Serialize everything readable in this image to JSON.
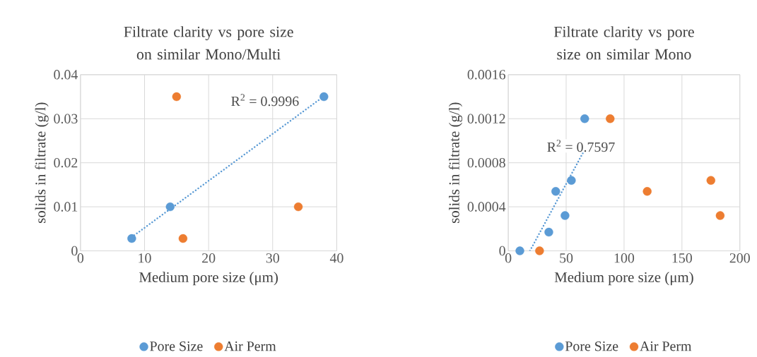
{
  "chart_data": [
    {
      "type": "scatter",
      "title": "Filtrate clarity vs pore size on similar Mono/Multi",
      "xlabel": "Medium pore size (μm)",
      "ylabel": "solids in filtrate (g/l)",
      "xlim": [
        0,
        40
      ],
      "ylim": [
        0,
        0.04
      ],
      "xticks": [
        0,
        10,
        20,
        30,
        40
      ],
      "yticks": [
        0,
        0.01,
        0.02,
        0.03,
        0.04
      ],
      "grid": true,
      "legend": "bottom",
      "marker": "circle",
      "annotations": [
        "R$^{2}$ = 0.9996"
      ],
      "series": [
        {
          "name": "Pore Size",
          "color": "#5b9bd5",
          "x": [
            8,
            14,
            38
          ],
          "values": [
            0.0028,
            0.01,
            0.035
          ]
        },
        {
          "name": "Air Perm",
          "color": "#ed7d31",
          "x": [
            15,
            16,
            34
          ],
          "values": [
            0.035,
            0.0028,
            0.01
          ]
        },
        {
          "type": "line",
          "line_style": "dotted",
          "marker": "none",
          "color": "#5b9bd5",
          "x": [
            8,
            38
          ],
          "values": [
            0.0031,
            0.0351
          ]
        }
      ]
    },
    {
      "type": "scatter",
      "title": "Filtrate clarity vs pore size on similar Mono",
      "xlabel": "Medium pore size (μm)",
      "ylabel": "solids in filtrate (g/l)",
      "xlim": [
        0,
        200
      ],
      "ylim": [
        0,
        0.0016
      ],
      "xticks": [
        0,
        50,
        100,
        150,
        200
      ],
      "yticks": [
        0,
        0.0004,
        0.0008,
        0.0012,
        0.0016
      ],
      "grid": true,
      "legend": "bottom",
      "marker": "circle",
      "annotations": [
        "R$^{2}$ = 0.7597"
      ],
      "series": [
        {
          "name": "Pore Size",
          "color": "#5b9bd5",
          "x": [
            10,
            35,
            41,
            49,
            54.5,
            66
          ],
          "values": [
            0,
            0.00017,
            0.00054,
            0.00032,
            0.00064,
            0.0012
          ]
        },
        {
          "name": "Air Perm",
          "color": "#ed7d31",
          "x": [
            27,
            88,
            120,
            175,
            183
          ],
          "values": [
            0,
            0.0012,
            0.00054,
            0.00064,
            0.00032
          ]
        },
        {
          "type": "line",
          "line_style": "dotted",
          "marker": "none",
          "color": "#5b9bd5",
          "x": [
            18.7,
            65
          ],
          "values": [
            0,
            0.0009
          ]
        }
      ]
    }
  ]
}
